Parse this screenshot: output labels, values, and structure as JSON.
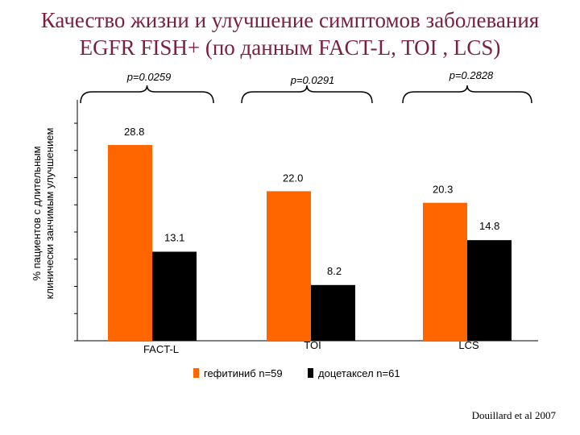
{
  "title_line1": "Качество жизни и улучшение симптомов заболевания",
  "title_line2": "EGFR FISH+ (по данным   FACT-L, TOI , LCS)",
  "source": "Douillard et al 2007",
  "chart_data": {
    "type": "bar",
    "ylabel_line1": "% пациентов с длительным",
    "ylabel_line2": "клинически занчимым улучшением",
    "categories": [
      "FACT-L",
      "TOI",
      "LCS"
    ],
    "series": [
      {
        "name": "гефитиниб n=59",
        "values": [
          28.8,
          22.0,
          20.3
        ],
        "color": "#ff6600"
      },
      {
        "name": "доцетаксел n=61",
        "values": [
          13.1,
          8.2,
          14.8
        ],
        "color": "#000000"
      }
    ],
    "data_labels": [
      [
        "28.8",
        "22.0",
        "20.3"
      ],
      [
        "13.1",
        "8.2",
        "14.8"
      ]
    ],
    "p_values": [
      "p=0.0259",
      "p=0.0291",
      "p=0.2828"
    ],
    "ylim": [
      0,
      36
    ],
    "grid": false,
    "legend_position": "bottom"
  }
}
